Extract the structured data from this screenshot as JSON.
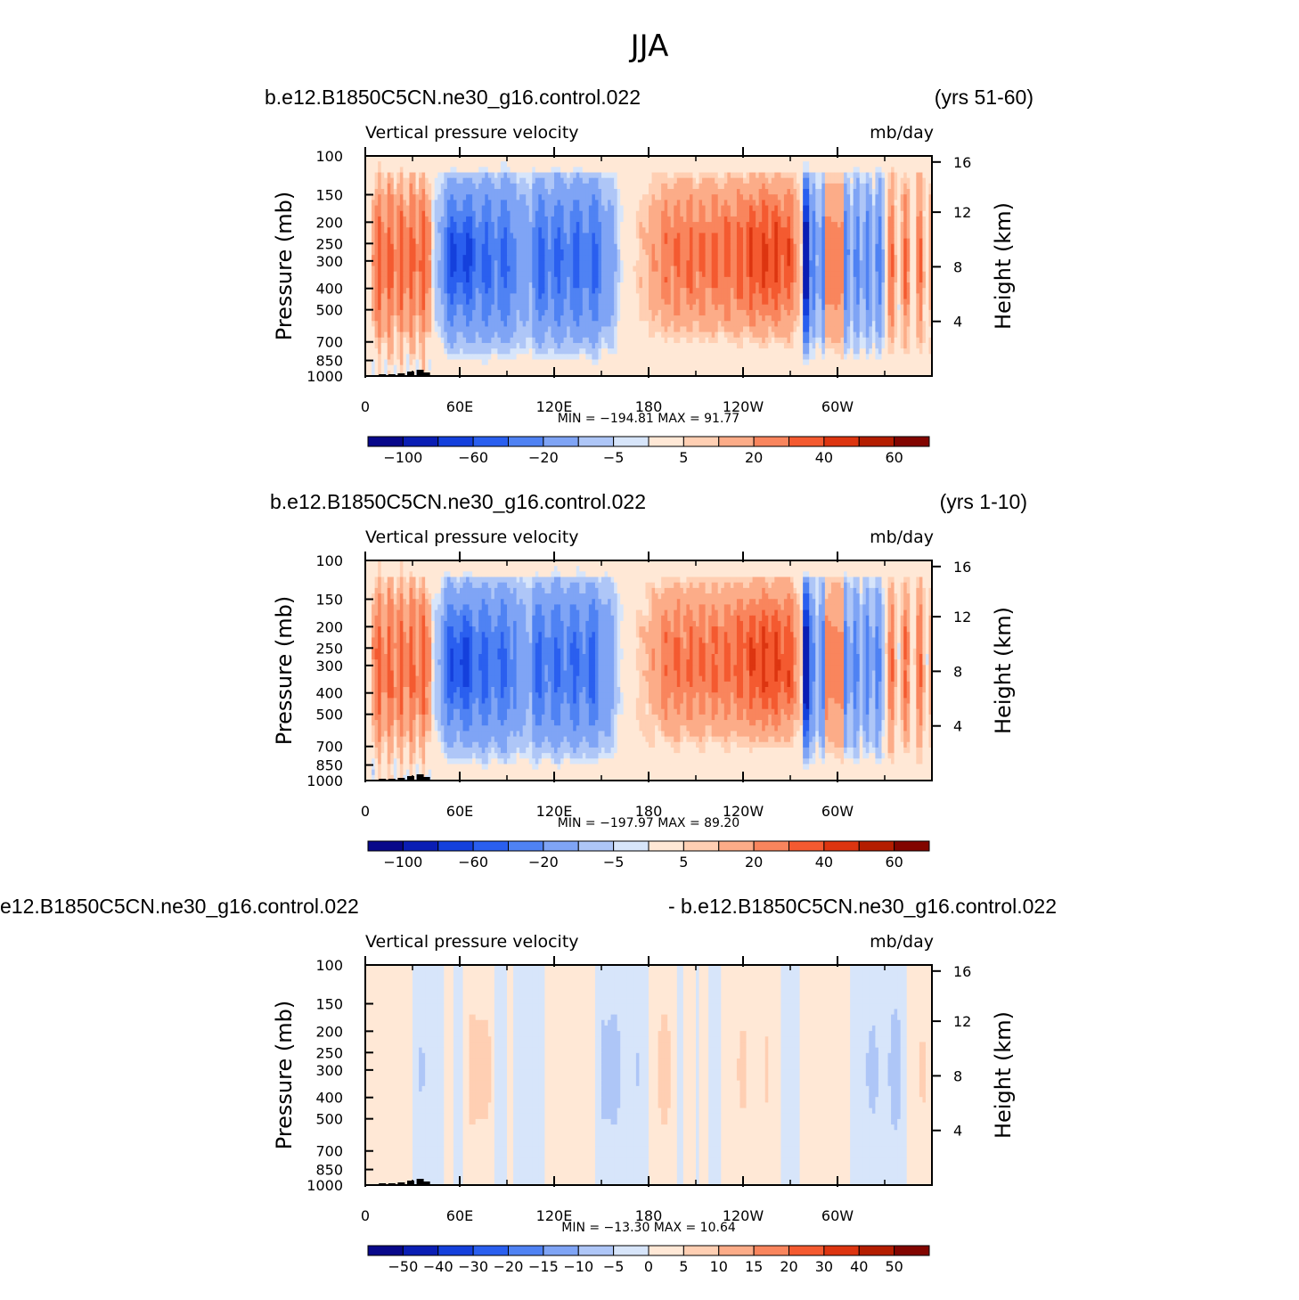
{
  "figure_title": "JJA",
  "panels": [
    {
      "left_title": "b.e12.B1850C5CN.ne30_g16.control.022",
      "right_title": "(yrs 51-60)",
      "center_label": "Vertical pressure velocity",
      "units": "mb/day",
      "min_max": "MIN = −194.81   MAX =   91.77",
      "colorbar_labels": [
        "−100",
        "−60",
        "−20",
        "−5",
        "5",
        "20",
        "40",
        "60"
      ]
    },
    {
      "left_title": "b.e12.B1850C5CN.ne30_g16.control.022",
      "right_title": "(yrs 1-10)",
      "center_label": "Vertical pressure velocity",
      "units": "mb/day",
      "min_max": "MIN = −197.97   MAX =   89.20",
      "colorbar_labels": [
        "−100",
        "−60",
        "−20",
        "−5",
        "5",
        "20",
        "40",
        "60"
      ]
    },
    {
      "left_title": "e12.B1850C5CN.ne30_g16.control.022",
      "right_title": "- b.e12.B1850C5CN.ne30_g16.control.022",
      "center_label": "Vertical pressure velocity",
      "units": "mb/day",
      "min_max": "MIN = −13.30   MAX =   10.64",
      "colorbar_labels": [
        "−50",
        "−40",
        "−30",
        "−20",
        "−15",
        "−10",
        "−5",
        "0",
        "5",
        "10",
        "15",
        "20",
        "30",
        "40",
        "50"
      ]
    }
  ],
  "colors": {
    "scale_blue_to_red": [
      "#08088a",
      "#0a1eb4",
      "#1440dc",
      "#2a5fef",
      "#4f82f3",
      "#7fa4f5",
      "#aec6f7",
      "#d7e5fa",
      "#ffe8d6",
      "#ffcfb3",
      "#fcac88",
      "#f9855d",
      "#f45a30",
      "#dd3510",
      "#b41d00",
      "#820500"
    ]
  },
  "chart_data": [
    {
      "type": "heatmap",
      "title": "Vertical pressure velocity",
      "units": "mb/day",
      "xlabel": "",
      "ylabel": "Pressure (mb)",
      "y2label": "Height (km)",
      "x_ticks": [
        "0",
        "60E",
        "120E",
        "180",
        "120W",
        "60W"
      ],
      "y_ticks": [
        100,
        150,
        200,
        250,
        300,
        400,
        500,
        700,
        850,
        1000
      ],
      "y2_ticks": [
        16,
        12,
        8,
        4
      ],
      "y_scale": "log",
      "contour_levels": [
        -100,
        -60,
        -20,
        -5,
        5,
        20,
        40,
        60
      ],
      "min": -194.81,
      "max": 91.77,
      "regions": [
        {
          "lon_range": [
            10,
            45
          ],
          "sign": "positive",
          "peak": 30
        },
        {
          "lon_range": [
            45,
            160
          ],
          "sign": "negative",
          "peak": -100
        },
        {
          "lon_range": [
            195,
            280
          ],
          "sign": "positive",
          "peak": 40
        },
        {
          "lon_range": [
            280,
            330
          ],
          "sign": "negative",
          "peak": -60
        },
        {
          "lon_range": [
            330,
            360
          ],
          "sign": "positive",
          "peak": 30
        }
      ]
    },
    {
      "type": "heatmap",
      "title": "Vertical pressure velocity",
      "units": "mb/day",
      "xlabel": "",
      "ylabel": "Pressure (mb)",
      "y2label": "Height (km)",
      "x_ticks": [
        "0",
        "60E",
        "120E",
        "180",
        "120W",
        "60W"
      ],
      "y_ticks": [
        100,
        150,
        200,
        250,
        300,
        400,
        500,
        700,
        850,
        1000
      ],
      "y2_ticks": [
        16,
        12,
        8,
        4
      ],
      "y_scale": "log",
      "contour_levels": [
        -100,
        -60,
        -20,
        -5,
        5,
        20,
        40,
        60
      ],
      "min": -197.97,
      "max": 89.2,
      "regions": [
        {
          "lon_range": [
            10,
            45
          ],
          "sign": "positive",
          "peak": 30
        },
        {
          "lon_range": [
            45,
            160
          ],
          "sign": "negative",
          "peak": -100
        },
        {
          "lon_range": [
            195,
            280
          ],
          "sign": "positive",
          "peak": 40
        },
        {
          "lon_range": [
            280,
            330
          ],
          "sign": "negative",
          "peak": -60
        },
        {
          "lon_range": [
            330,
            360
          ],
          "sign": "positive",
          "peak": 30
        }
      ]
    },
    {
      "type": "heatmap",
      "title": "Vertical pressure velocity",
      "units": "mb/day",
      "xlabel": "",
      "ylabel": "Pressure (mb)",
      "y2label": "Height (km)",
      "x_ticks": [
        "0",
        "60E",
        "120E",
        "180",
        "120W",
        "60W"
      ],
      "y_ticks": [
        100,
        150,
        200,
        250,
        300,
        400,
        500,
        700,
        850,
        1000
      ],
      "y2_ticks": [
        16,
        12,
        8,
        4
      ],
      "y_scale": "log",
      "contour_levels": [
        -50,
        -40,
        -30,
        -20,
        -15,
        -10,
        -5,
        0,
        5,
        10,
        15,
        20,
        30,
        40,
        50
      ],
      "min": -13.3,
      "max": 10.64
    }
  ],
  "axis_labels": {
    "pressure": "Pressure (mb)",
    "height": "Height (km)"
  }
}
